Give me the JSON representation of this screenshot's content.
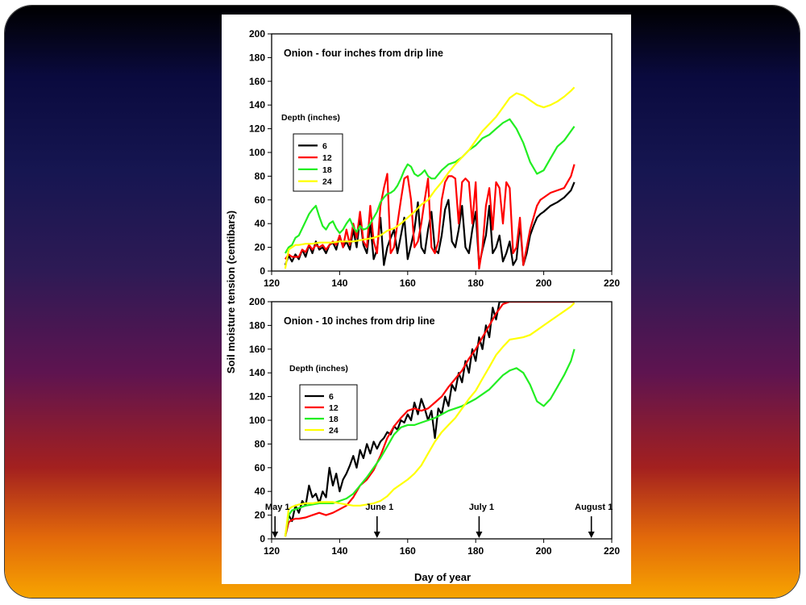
{
  "colors": {
    "s6": "#000000",
    "s12": "#ff0000",
    "s18": "#22ee22",
    "s24": "#ffff00"
  },
  "ylabel": "Soil moisture tension (centibars)",
  "xlabel": "Day of year",
  "chart_data": [
    {
      "type": "line",
      "title": "Onion - four inches from drip line",
      "legend_title": "Depth (inches)",
      "legend_placement": "upper-left",
      "xlim": [
        120,
        220
      ],
      "ylim": [
        0,
        200
      ],
      "xticks": [
        "120",
        "140",
        "160",
        "180",
        "200",
        "220"
      ],
      "yticks": [
        "0",
        "20",
        "40",
        "60",
        "80",
        "100",
        "120",
        "140",
        "160",
        "180",
        "200"
      ],
      "grid": false,
      "series": [
        {
          "name": "6",
          "color": "#000000",
          "x": [
            124,
            125,
            126,
            127,
            128,
            129,
            130,
            131,
            132,
            133,
            134,
            135,
            136,
            137,
            138,
            139,
            140,
            141,
            142,
            143,
            144,
            145,
            146,
            147,
            148,
            149,
            150,
            151,
            152,
            153,
            154,
            155,
            156,
            157,
            158,
            159,
            160,
            161,
            162,
            163,
            164,
            165,
            166,
            167,
            168,
            169,
            170,
            171,
            172,
            173,
            174,
            175,
            176,
            177,
            178,
            179,
            180,
            181,
            182,
            183,
            184,
            185,
            186,
            187,
            188,
            189,
            190,
            191,
            192,
            193,
            194,
            195,
            196,
            197,
            198,
            199,
            200,
            202,
            204,
            206,
            208,
            209
          ],
          "y": [
            5,
            13,
            8,
            14,
            10,
            18,
            12,
            22,
            15,
            25,
            18,
            20,
            15,
            22,
            24,
            18,
            30,
            20,
            25,
            18,
            35,
            20,
            45,
            22,
            15,
            40,
            10,
            18,
            45,
            5,
            20,
            28,
            35,
            15,
            30,
            45,
            10,
            22,
            35,
            58,
            20,
            15,
            35,
            50,
            18,
            15,
            30,
            52,
            60,
            25,
            20,
            35,
            55,
            20,
            15,
            35,
            50,
            5,
            18,
            30,
            55,
            15,
            20,
            30,
            8,
            15,
            25,
            5,
            10,
            40,
            5,
            15,
            30,
            38,
            45,
            48,
            50,
            55,
            58,
            62,
            68,
            75
          ]
        },
        {
          "name": "12",
          "color": "#ff0000",
          "x": [
            124,
            125,
            126,
            127,
            128,
            129,
            130,
            131,
            132,
            133,
            134,
            135,
            136,
            137,
            138,
            139,
            140,
            141,
            142,
            143,
            144,
            145,
            146,
            147,
            148,
            149,
            150,
            151,
            152,
            153,
            154,
            155,
            156,
            157,
            158,
            159,
            160,
            161,
            162,
            163,
            164,
            165,
            166,
            167,
            168,
            169,
            170,
            171,
            172,
            173,
            174,
            175,
            176,
            177,
            178,
            179,
            180,
            181,
            182,
            183,
            184,
            185,
            186,
            187,
            188,
            189,
            190,
            191,
            192,
            193,
            194,
            195,
            196,
            197,
            198,
            199,
            200,
            202,
            204,
            206,
            208,
            209
          ],
          "y": [
            10,
            14,
            12,
            12,
            12,
            18,
            16,
            22,
            18,
            22,
            20,
            22,
            18,
            22,
            25,
            22,
            30,
            20,
            35,
            22,
            40,
            28,
            50,
            25,
            20,
            55,
            25,
            15,
            55,
            70,
            82,
            15,
            20,
            40,
            60,
            78,
            80,
            60,
            20,
            25,
            40,
            60,
            78,
            20,
            15,
            25,
            60,
            75,
            80,
            80,
            78,
            40,
            75,
            78,
            75,
            40,
            75,
            2,
            20,
            55,
            70,
            35,
            75,
            70,
            40,
            75,
            70,
            15,
            20,
            45,
            5,
            20,
            35,
            45,
            55,
            60,
            62,
            66,
            68,
            70,
            80,
            90
          ]
        },
        {
          "name": "18",
          "color": "#22ee22",
          "x": [
            124,
            125,
            126,
            127,
            128,
            129,
            130,
            131,
            132,
            133,
            134,
            135,
            136,
            137,
            138,
            139,
            140,
            141,
            142,
            143,
            144,
            145,
            146,
            147,
            148,
            149,
            150,
            151,
            152,
            153,
            154,
            155,
            156,
            157,
            158,
            159,
            160,
            161,
            162,
            163,
            164,
            165,
            166,
            167,
            168,
            170,
            172,
            174,
            176,
            178,
            180,
            182,
            184,
            186,
            188,
            190,
            192,
            194,
            196,
            198,
            200,
            202,
            204,
            206,
            208,
            209
          ],
          "y": [
            15,
            20,
            22,
            28,
            30,
            36,
            42,
            48,
            52,
            55,
            46,
            38,
            35,
            40,
            42,
            36,
            32,
            35,
            40,
            44,
            37,
            33,
            38,
            35,
            36,
            40,
            45,
            50,
            58,
            62,
            65,
            66,
            68,
            72,
            78,
            85,
            90,
            88,
            82,
            80,
            82,
            85,
            80,
            78,
            78,
            85,
            90,
            92,
            96,
            102,
            106,
            112,
            115,
            120,
            125,
            128,
            120,
            108,
            92,
            82,
            85,
            95,
            105,
            110,
            118,
            122
          ]
        },
        {
          "name": "24",
          "color": "#ffff00",
          "x": [
            124,
            125,
            126,
            127,
            128,
            130,
            132,
            134,
            136,
            138,
            140,
            142,
            144,
            146,
            148,
            150,
            152,
            154,
            156,
            158,
            160,
            162,
            164,
            166,
            168,
            170,
            172,
            174,
            176,
            178,
            180,
            182,
            184,
            186,
            188,
            190,
            192,
            194,
            196,
            198,
            200,
            202,
            204,
            206,
            208,
            209
          ],
          "y": [
            2,
            18,
            20,
            22,
            22,
            23,
            23,
            24,
            24,
            24,
            25,
            25,
            25,
            26,
            27,
            28,
            30,
            34,
            36,
            40,
            45,
            50,
            56,
            60,
            68,
            75,
            83,
            90,
            96,
            102,
            110,
            118,
            124,
            130,
            138,
            146,
            150,
            148,
            144,
            140,
            138,
            140,
            143,
            147,
            152,
            155
          ]
        }
      ]
    },
    {
      "type": "line",
      "title": "Onion - 10 inches from drip line",
      "legend_title": "Depth (inches)",
      "legend_placement": "upper-left",
      "xlim": [
        120,
        220
      ],
      "ylim": [
        0,
        200
      ],
      "xticks": [
        "120",
        "140",
        "160",
        "180",
        "200",
        "220"
      ],
      "yticks": [
        "0",
        "20",
        "40",
        "60",
        "80",
        "100",
        "120",
        "140",
        "160",
        "180",
        "200"
      ],
      "grid": false,
      "annotations": [
        {
          "text": "May 1",
          "x": 121
        },
        {
          "text": "June 1",
          "x": 151
        },
        {
          "text": "July 1",
          "x": 181
        },
        {
          "text": "August 1",
          "x": 214
        }
      ],
      "series": [
        {
          "name": "6",
          "color": "#000000",
          "x": [
            124,
            125,
            126,
            127,
            128,
            129,
            130,
            131,
            132,
            133,
            134,
            135,
            136,
            137,
            138,
            139,
            140,
            141,
            142,
            143,
            144,
            145,
            146,
            147,
            148,
            149,
            150,
            151,
            152,
            153,
            154,
            155,
            156,
            157,
            158,
            159,
            160,
            161,
            162,
            163,
            164,
            165,
            166,
            167,
            168,
            169,
            170,
            171,
            172,
            173,
            174,
            175,
            176,
            177,
            178,
            179,
            180,
            181,
            182,
            183,
            184,
            185,
            186,
            187,
            188,
            189,
            190,
            191,
            192,
            194,
            196,
            198,
            200,
            202,
            204,
            206,
            208,
            209
          ],
          "y": [
            2,
            20,
            15,
            28,
            22,
            32,
            28,
            45,
            35,
            38,
            30,
            40,
            35,
            60,
            45,
            55,
            40,
            50,
            55,
            62,
            70,
            60,
            75,
            68,
            80,
            72,
            82,
            76,
            82,
            85,
            90,
            88,
            95,
            92,
            100,
            98,
            105,
            100,
            115,
            105,
            118,
            110,
            100,
            108,
            85,
            110,
            105,
            120,
            112,
            130,
            125,
            140,
            132,
            150,
            140,
            160,
            150,
            170,
            160,
            180,
            170,
            195,
            185,
            200,
            200,
            200,
            200,
            200,
            200,
            200,
            200,
            200,
            200,
            200,
            200,
            200,
            200,
            200
          ]
        },
        {
          "name": "12",
          "color": "#ff0000",
          "x": [
            124,
            125,
            126,
            127,
            128,
            130,
            132,
            134,
            136,
            138,
            140,
            142,
            144,
            146,
            148,
            150,
            152,
            154,
            156,
            158,
            160,
            162,
            164,
            166,
            168,
            170,
            172,
            174,
            176,
            178,
            180,
            182,
            184,
            186,
            188,
            190,
            192,
            194,
            196,
            198,
            200,
            202,
            204,
            206,
            208,
            209
          ],
          "y": [
            2,
            14,
            16,
            17,
            17,
            18,
            20,
            22,
            20,
            22,
            25,
            28,
            35,
            45,
            50,
            58,
            70,
            85,
            95,
            102,
            108,
            110,
            108,
            110,
            115,
            120,
            128,
            135,
            142,
            152,
            160,
            170,
            180,
            190,
            198,
            200,
            200,
            200,
            200,
            200,
            200,
            200,
            200,
            200,
            200,
            200
          ]
        },
        {
          "name": "18",
          "color": "#22ee22",
          "x": [
            124,
            125,
            126,
            127,
            128,
            130,
            132,
            134,
            136,
            138,
            140,
            142,
            144,
            146,
            148,
            150,
            152,
            154,
            156,
            158,
            160,
            162,
            164,
            166,
            168,
            170,
            172,
            174,
            176,
            178,
            180,
            182,
            184,
            186,
            188,
            190,
            192,
            194,
            196,
            198,
            200,
            202,
            204,
            206,
            208,
            209
          ],
          "y": [
            2,
            20,
            24,
            25,
            26,
            28,
            29,
            30,
            30,
            30,
            32,
            34,
            38,
            45,
            52,
            60,
            68,
            78,
            88,
            94,
            96,
            96,
            98,
            100,
            102,
            105,
            108,
            110,
            112,
            115,
            118,
            122,
            126,
            132,
            138,
            142,
            144,
            140,
            130,
            116,
            112,
            118,
            128,
            138,
            150,
            160
          ]
        },
        {
          "name": "24",
          "color": "#ffff00",
          "x": [
            124,
            125,
            126,
            127,
            128,
            130,
            132,
            134,
            136,
            138,
            140,
            142,
            144,
            146,
            148,
            150,
            152,
            154,
            156,
            158,
            160,
            162,
            164,
            166,
            168,
            170,
            172,
            174,
            176,
            178,
            180,
            182,
            184,
            186,
            188,
            190,
            192,
            194,
            196,
            198,
            200,
            202,
            204,
            206,
            208,
            209
          ],
          "y": [
            2,
            25,
            27,
            28,
            29,
            30,
            30,
            31,
            31,
            31,
            30,
            29,
            28,
            28,
            29,
            30,
            32,
            36,
            42,
            46,
            50,
            55,
            62,
            72,
            82,
            90,
            96,
            102,
            110,
            118,
            125,
            135,
            145,
            155,
            162,
            168,
            169,
            170,
            172,
            176,
            180,
            184,
            188,
            192,
            196,
            199
          ]
        }
      ]
    }
  ]
}
